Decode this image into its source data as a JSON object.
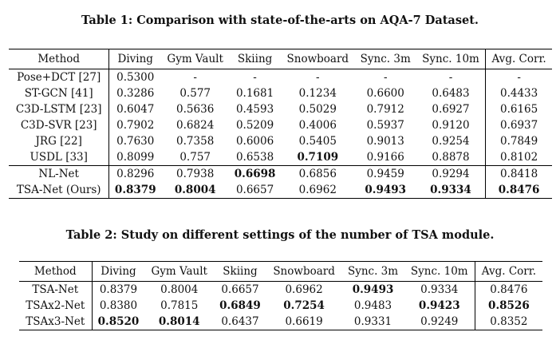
{
  "table1": {
    "caption": "Table 1: Comparison with state-of-the-arts on AQA-7 Dataset.",
    "headers": [
      "Method",
      "Diving",
      "Gym Vault",
      "Skiing",
      "Snowboard",
      "Sync. 3m",
      "Sync. 10m",
      "Avg. Corr."
    ],
    "group1": [
      [
        "Pose+DCT [27]",
        "0.5300",
        "-",
        "-",
        "-",
        "-",
        "-",
        "-"
      ],
      [
        "ST-GCN [41]",
        "0.3286",
        "0.577",
        "0.1681",
        "0.1234",
        "0.6600",
        "0.6483",
        "0.4433"
      ],
      [
        "C3D-LSTM [23]",
        "0.6047",
        "0.5636",
        "0.4593",
        "0.5029",
        "0.7912",
        "0.6927",
        "0.6165"
      ],
      [
        "C3D-SVR [23]",
        "0.7902",
        "0.6824",
        "0.5209",
        "0.4006",
        "0.5937",
        "0.9120",
        "0.6937"
      ],
      [
        "JRG [22]",
        "0.7630",
        "0.7358",
        "0.6006",
        "0.5405",
        "0.9013",
        "0.9254",
        "0.7849"
      ],
      [
        "USDL [33]",
        "0.8099",
        "0.757",
        "0.6538",
        "0.7109",
        "0.9166",
        "0.8878",
        "0.8102"
      ]
    ],
    "group2": [
      [
        "NL-Net",
        "0.8296",
        "0.7938",
        "0.6698",
        "0.6856",
        "0.9459",
        "0.9294",
        "0.8418"
      ],
      [
        "TSA-Net (Ours)",
        "0.8379",
        "0.8004",
        "0.6657",
        "0.6962",
        "0.9493",
        "0.9334",
        "0.8476"
      ]
    ]
  },
  "table2": {
    "caption": "Table 2: Study on different settings of the number of TSA module.",
    "headers": [
      "Method",
      "Diving",
      "Gym Vault",
      "Skiing",
      "Snowboard",
      "Sync. 3m",
      "Sync. 10m",
      "Avg. Corr."
    ],
    "rows": [
      [
        "TSA-Net",
        "0.8379",
        "0.8004",
        "0.6657",
        "0.6962",
        "0.9493",
        "0.9334",
        "0.8476"
      ],
      [
        "TSAx2-Net",
        "0.8380",
        "0.7815",
        "0.6849",
        "0.7254",
        "0.9483",
        "0.9423",
        "0.8526"
      ],
      [
        "TSAx3-Net",
        "0.8520",
        "0.8014",
        "0.6437",
        "0.6619",
        "0.9331",
        "0.9249",
        "0.8352"
      ]
    ]
  }
}
